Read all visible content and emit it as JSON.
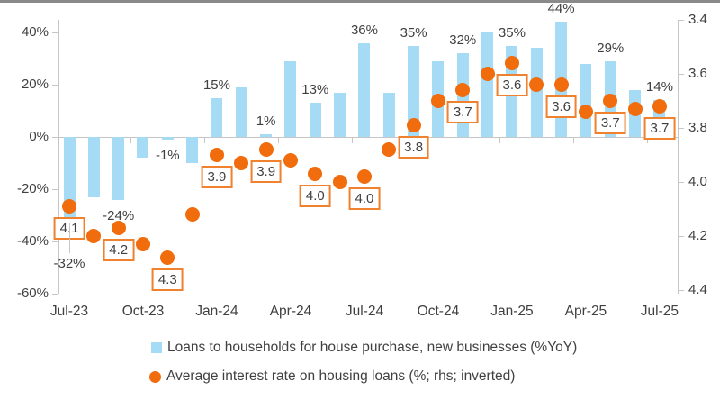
{
  "chart_data": {
    "type": "combo",
    "title": "",
    "x_categories": [
      "Jul-23",
      "Aug-23",
      "Sep-23",
      "Oct-23",
      "Nov-23",
      "Dec-23",
      "Jan-24",
      "Feb-24",
      "Mar-24",
      "Apr-24",
      "May-24",
      "Jun-24",
      "Jul-24",
      "Aug-24",
      "Sep-24",
      "Oct-24",
      "Nov-24",
      "Dec-24",
      "Jan-25",
      "Feb-25",
      "Mar-25",
      "Apr-25",
      "May-25",
      "Jun-25",
      "Jul-25"
    ],
    "x_tick_labels": [
      "Jul-23",
      "Oct-23",
      "Jan-24",
      "Apr-24",
      "Jul-24",
      "Oct-24",
      "Jan-25",
      "Apr-25",
      "Jul-25"
    ],
    "x_tick_indices": [
      0,
      3,
      6,
      9,
      12,
      15,
      18,
      21,
      24
    ],
    "series": [
      {
        "name": "Loans to households for house purchase, new businesses (%YoY)",
        "type": "bar",
        "axis": "left",
        "values": [
          -32,
          -23,
          -24,
          -8,
          -1,
          -10,
          15,
          19,
          1,
          29,
          13,
          17,
          36,
          17,
          35,
          29,
          32,
          40,
          35,
          34,
          44,
          28,
          29,
          18,
          14
        ],
        "data_labels": [
          "-32%",
          null,
          "-24%",
          null,
          "-1%",
          null,
          "15%",
          null,
          "1%",
          null,
          "13%",
          null,
          "36%",
          null,
          "35%",
          null,
          "32%",
          null,
          "35%",
          null,
          "44%",
          null,
          "29%",
          null,
          "14%"
        ]
      },
      {
        "name": "Average interest rate on housing loans (%; rhs; inverted)",
        "type": "scatter",
        "axis": "right",
        "values": [
          4.09,
          4.2,
          4.17,
          4.23,
          4.28,
          4.12,
          3.9,
          3.93,
          3.88,
          3.92,
          3.97,
          4.0,
          3.98,
          3.88,
          3.79,
          3.7,
          3.66,
          3.6,
          3.56,
          3.64,
          3.64,
          3.74,
          3.7,
          3.73,
          3.72
        ],
        "data_labels": [
          "4.1",
          null,
          "4.2",
          null,
          "4.3",
          null,
          "3.9",
          null,
          "3.9",
          null,
          "4.0",
          null,
          "4.0",
          null,
          "3.8",
          null,
          "3.7",
          null,
          "3.6",
          null,
          "3.6",
          null,
          "3.7",
          null,
          "3.7"
        ]
      }
    ],
    "left_axis": {
      "tick_labels": [
        "40%",
        "20%",
        "0%",
        "-20%",
        "-40%",
        "-60%"
      ],
      "tick_values": [
        40,
        20,
        0,
        -20,
        -40,
        -60
      ],
      "range": [
        -60,
        45
      ]
    },
    "right_axis": {
      "tick_labels": [
        "3.4",
        "3.6",
        "3.8",
        "4.0",
        "4.2",
        "4.4"
      ],
      "tick_values": [
        3.4,
        3.6,
        3.8,
        4.0,
        4.2,
        4.4
      ],
      "range": [
        3.4,
        4.4
      ],
      "inverted": true
    },
    "grid": false,
    "legend_position": "bottom",
    "colors": {
      "bar": "#a6dbf5",
      "dot": "#f06c0c",
      "label_box_border": "#f0812e",
      "label_box_bg": "#ffffff",
      "axis_line": "#c6c6c6",
      "text": "#404040",
      "top_rule": "#8a8a8a"
    }
  }
}
